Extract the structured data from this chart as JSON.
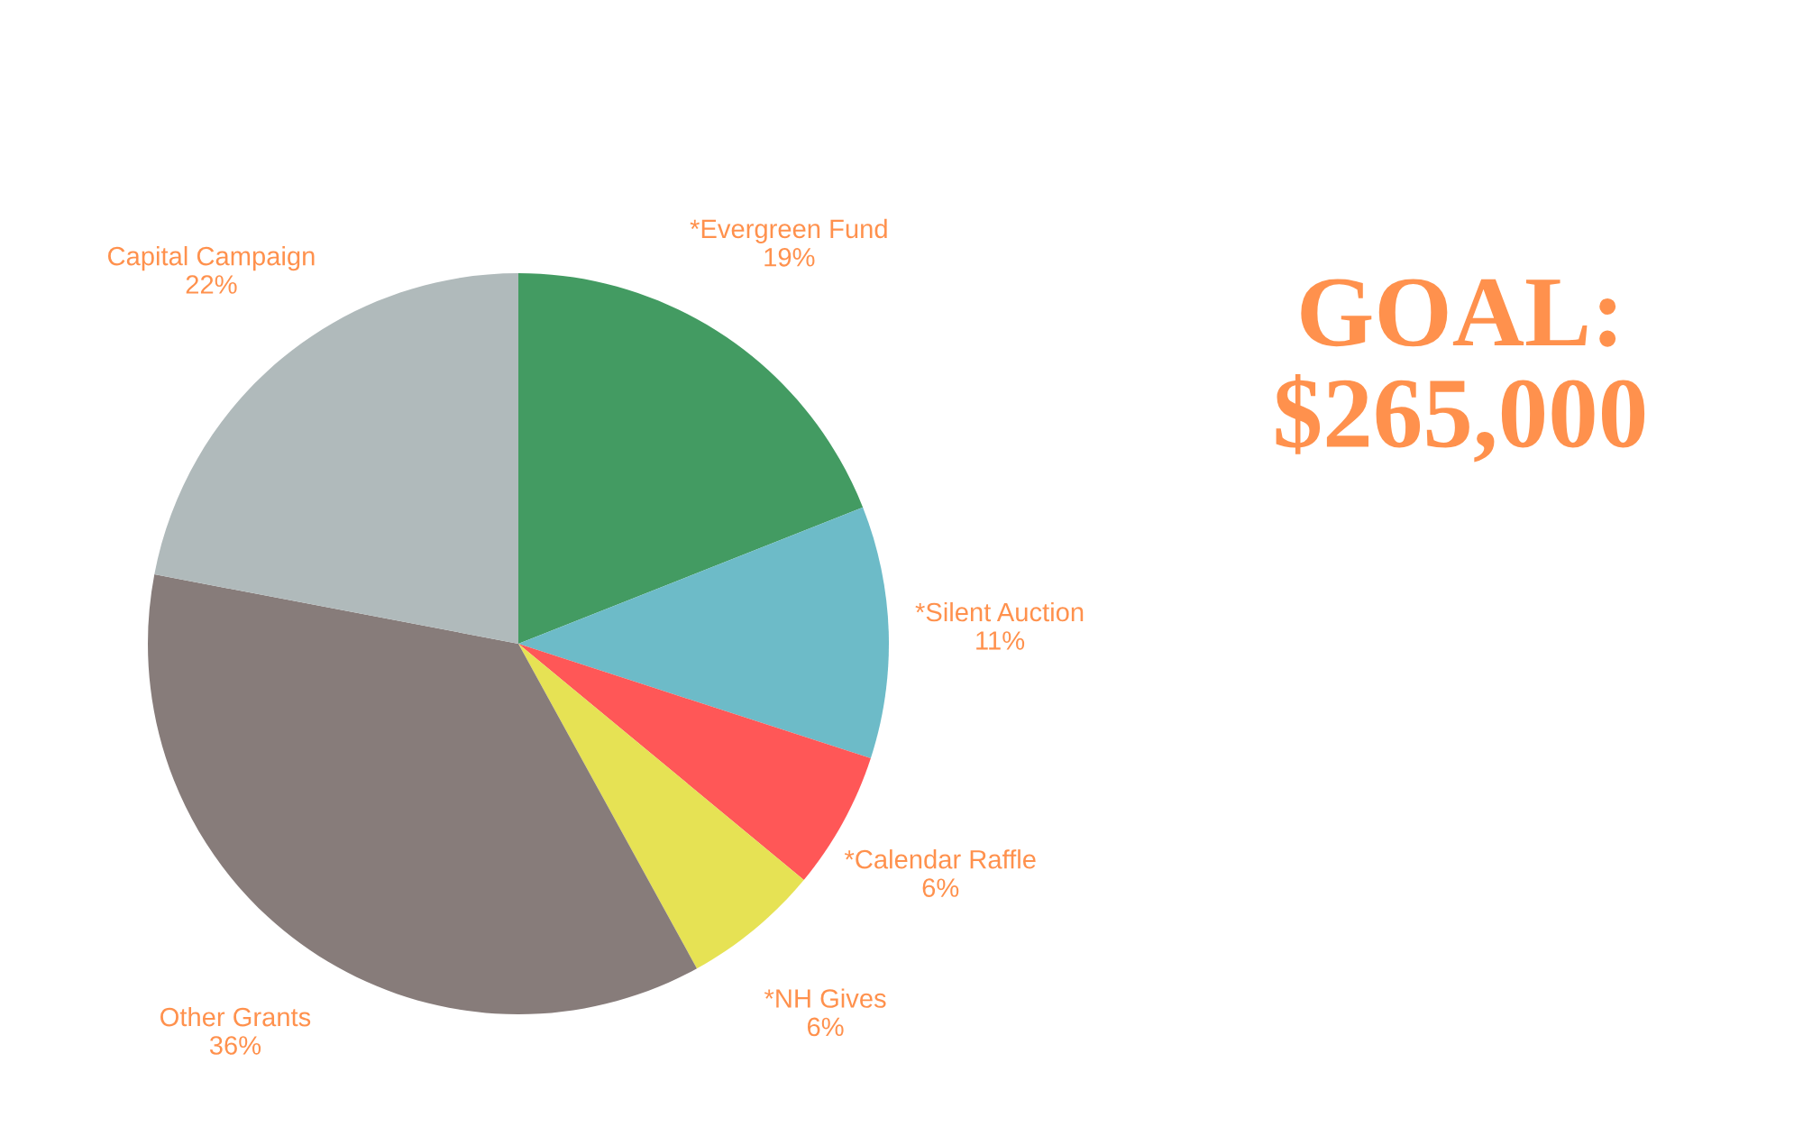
{
  "chart_data": {
    "type": "pie",
    "title": "GOAL: $265,000",
    "categories": [
      "*Evergreen Fund",
      "*Silent Auction",
      "*Calendar Raffle",
      "*NH Gives",
      "Other Grants",
      "Capital Campaign"
    ],
    "values": [
      19,
      11,
      6,
      6,
      36,
      22
    ],
    "colors": [
      "#439b62",
      "#6dbbc8",
      "#ff5757",
      "#e6e254",
      "#877c7a",
      "#b0babb"
    ],
    "value_labels": [
      "19%",
      "11%",
      "6%",
      "6%",
      "36%",
      "22%"
    ]
  }
}
